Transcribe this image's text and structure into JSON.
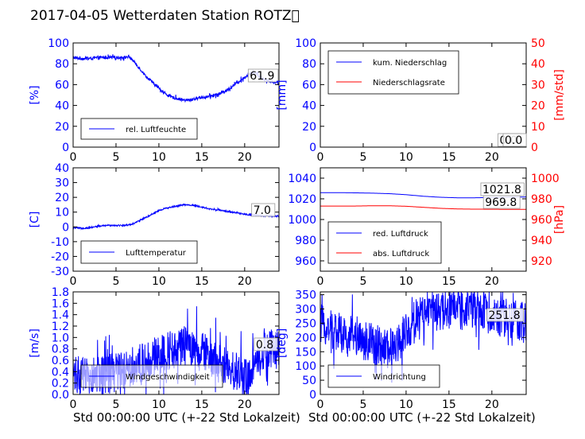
{
  "figure": {
    "title": "2017-04-05 Wetterdaten Station ROTZ\u0000",
    "xlabel_left": "Std 00:00:00 UTC (+-22 Std Lokalzeit)",
    "xlabel_right": "Std 00:00:00 UTC (+-22 Std Lokalzeit)"
  },
  "colors": {
    "left_axis": "#0000ff",
    "right_axis": "#ff0000",
    "text": "#000000"
  },
  "chart_data": [
    {
      "id": "humidity",
      "type": "line",
      "xlim": [
        0,
        24
      ],
      "ylim": [
        0,
        100
      ],
      "xticks": [
        0,
        5,
        10,
        15,
        20
      ],
      "yticks": [
        0,
        20,
        40,
        60,
        80,
        100
      ],
      "ylabel": "[%]",
      "legend_position": "lower-left",
      "series": [
        {
          "name": "rel. Luftfeuchte",
          "color": "#0000ff",
          "x": [
            0,
            1,
            2,
            3,
            4,
            5,
            6,
            6.5,
            7,
            7.5,
            8,
            8.5,
            9,
            9.5,
            10,
            10.5,
            11,
            11.5,
            12,
            12.5,
            13,
            13.5,
            14,
            14.5,
            15,
            15.5,
            16,
            16.5,
            17,
            17.5,
            18,
            18.5,
            19,
            19.5,
            20,
            20.5,
            21,
            21.5,
            22,
            23,
            24
          ],
          "y": [
            86,
            85,
            85,
            86,
            86,
            86,
            86,
            87,
            83,
            78,
            73,
            68,
            64,
            60,
            57,
            53,
            50,
            48,
            47,
            46,
            45,
            45,
            46,
            47,
            48,
            48,
            49,
            50,
            51,
            53,
            55,
            58,
            61,
            64,
            67,
            70,
            72,
            70,
            66,
            63,
            62
          ],
          "noise": 1.5
        }
      ],
      "annotations": [
        {
          "text": "61.9"
        }
      ]
    },
    {
      "id": "precip",
      "type": "line",
      "xlim": [
        0,
        24
      ],
      "ylim": [
        0,
        100
      ],
      "xticks": [
        0,
        5,
        10,
        15,
        20
      ],
      "yticks": [
        0,
        20,
        40,
        60,
        80,
        100
      ],
      "ylabel": "[mm]",
      "y2lim": [
        0,
        50
      ],
      "y2ticks": [
        0,
        10,
        20,
        30,
        40,
        50
      ],
      "y2label": "[mm/std]",
      "legend_position": "upper-left",
      "series": [
        {
          "name": "kum. Niederschlag",
          "color": "#0000ff",
          "x": [
            0,
            24
          ],
          "y": [
            0,
            0
          ],
          "noise": 0
        },
        {
          "name": "Niederschlagsrate",
          "color": "#ff0000",
          "axis": "right",
          "x": [
            0,
            24
          ],
          "y": [
            0,
            0
          ],
          "noise": 0
        }
      ],
      "annotations": [
        {
          "text": "0.0"
        },
        {
          "text": "0.0"
        }
      ]
    },
    {
      "id": "temperature",
      "type": "line",
      "xlim": [
        0,
        24
      ],
      "ylim": [
        -30,
        40
      ],
      "xticks": [
        0,
        5,
        10,
        15,
        20
      ],
      "yticks": [
        -30,
        -20,
        -10,
        0,
        10,
        20,
        30,
        40
      ],
      "ylabel": "[C]",
      "legend_position": "lower-left",
      "series": [
        {
          "name": "Lufttemperatur",
          "color": "#0000ff",
          "x": [
            0,
            1,
            2,
            3,
            4,
            5,
            6,
            7,
            8,
            9,
            10,
            11,
            12,
            13,
            14,
            15,
            16,
            17,
            18,
            19,
            20,
            21,
            22,
            23,
            24
          ],
          "y": [
            -0.5,
            -1,
            -0.5,
            0.5,
            1,
            1,
            1,
            2,
            5,
            8,
            11,
            13,
            14,
            15,
            14.5,
            13.5,
            12,
            11.5,
            10.5,
            9.5,
            8.5,
            8,
            7.5,
            7.5,
            7
          ],
          "noise": 0.5
        }
      ],
      "annotations": [
        {
          "text": "7.0"
        }
      ]
    },
    {
      "id": "pressure",
      "type": "line",
      "xlim": [
        0,
        24
      ],
      "ylim": [
        950,
        1050
      ],
      "xticks": [
        0,
        5,
        10,
        15,
        20
      ],
      "yticks": [
        960,
        980,
        1000,
        1020,
        1040
      ],
      "y2lim": [
        910,
        1010
      ],
      "y2ticks": [
        920,
        940,
        960,
        980,
        1000
      ],
      "y2label": "[hPa]",
      "legend_position": "lower-left",
      "series": [
        {
          "name": "red. Luftdruck",
          "color": "#0000ff",
          "x": [
            0,
            2,
            4,
            6,
            8,
            10,
            12,
            14,
            16,
            18,
            20,
            22,
            24
          ],
          "y": [
            1026,
            1026,
            1025.8,
            1025.5,
            1025,
            1024,
            1022.5,
            1021.5,
            1021,
            1021,
            1021.3,
            1021.6,
            1021.8
          ],
          "noise": 0
        },
        {
          "name": "abs. Luftdruck",
          "color": "#ff0000",
          "axis": "right",
          "x": [
            0,
            2,
            4,
            6,
            8,
            10,
            12,
            14,
            16,
            18,
            20,
            22,
            24
          ],
          "y": [
            973,
            973,
            973,
            973.3,
            973.3,
            972.8,
            971.8,
            970.8,
            970.2,
            970,
            969.9,
            969.8,
            969.8
          ],
          "noise": 0
        }
      ],
      "annotations": [
        {
          "text": "1021.8"
        },
        {
          "text": "969.8"
        }
      ]
    },
    {
      "id": "windspeed",
      "type": "line",
      "xlim": [
        0,
        24
      ],
      "ylim": [
        0,
        1.8
      ],
      "xticks": [
        0,
        5,
        10,
        15,
        20
      ],
      "yticks": [
        0,
        0.2,
        0.4,
        0.6,
        0.8,
        1.0,
        1.2,
        1.4,
        1.6,
        1.8
      ],
      "ylabel": "[m/s]",
      "legend_position": "lower-left",
      "series": [
        {
          "name": "Windgeschwindigkeit",
          "color": "#0000ff",
          "x": [
            0,
            1,
            2,
            3,
            4,
            5,
            6,
            7,
            8,
            9,
            10,
            11,
            12,
            13,
            14,
            15,
            16,
            17,
            18,
            19,
            20,
            21,
            22,
            23,
            24
          ],
          "y": [
            0.4,
            0.3,
            0.3,
            0.35,
            0.35,
            0.4,
            0.45,
            0.5,
            0.55,
            0.6,
            0.7,
            0.75,
            0.8,
            0.85,
            0.8,
            0.75,
            0.65,
            0.55,
            0.45,
            0.4,
            0.3,
            0.5,
            0.7,
            0.8,
            0.8
          ],
          "noise": 0.35
        }
      ],
      "annotations": [
        {
          "text": "0.8"
        }
      ]
    },
    {
      "id": "winddir",
      "type": "line",
      "xlim": [
        0,
        24
      ],
      "ylim": [
        0,
        360
      ],
      "xticks": [
        0,
        5,
        10,
        15,
        20
      ],
      "yticks": [
        0,
        50,
        100,
        150,
        200,
        250,
        300,
        350
      ],
      "ylabel": "[deg]",
      "legend_position": "lower-left",
      "series": [
        {
          "name": "Windrichtung",
          "color": "#0000ff",
          "x": [
            0,
            1,
            2,
            3,
            4,
            5,
            6,
            7,
            8,
            9,
            10,
            11,
            12,
            13,
            14,
            15,
            16,
            17,
            18,
            19,
            20,
            21,
            22,
            23,
            24
          ],
          "y": [
            250,
            230,
            220,
            200,
            210,
            190,
            180,
            170,
            160,
            180,
            220,
            260,
            290,
            295,
            290,
            300,
            300,
            290,
            295,
            290,
            280,
            270,
            265,
            260,
            252
          ],
          "noise": 70
        }
      ],
      "annotations": [
        {
          "text": "251.8"
        }
      ]
    }
  ]
}
